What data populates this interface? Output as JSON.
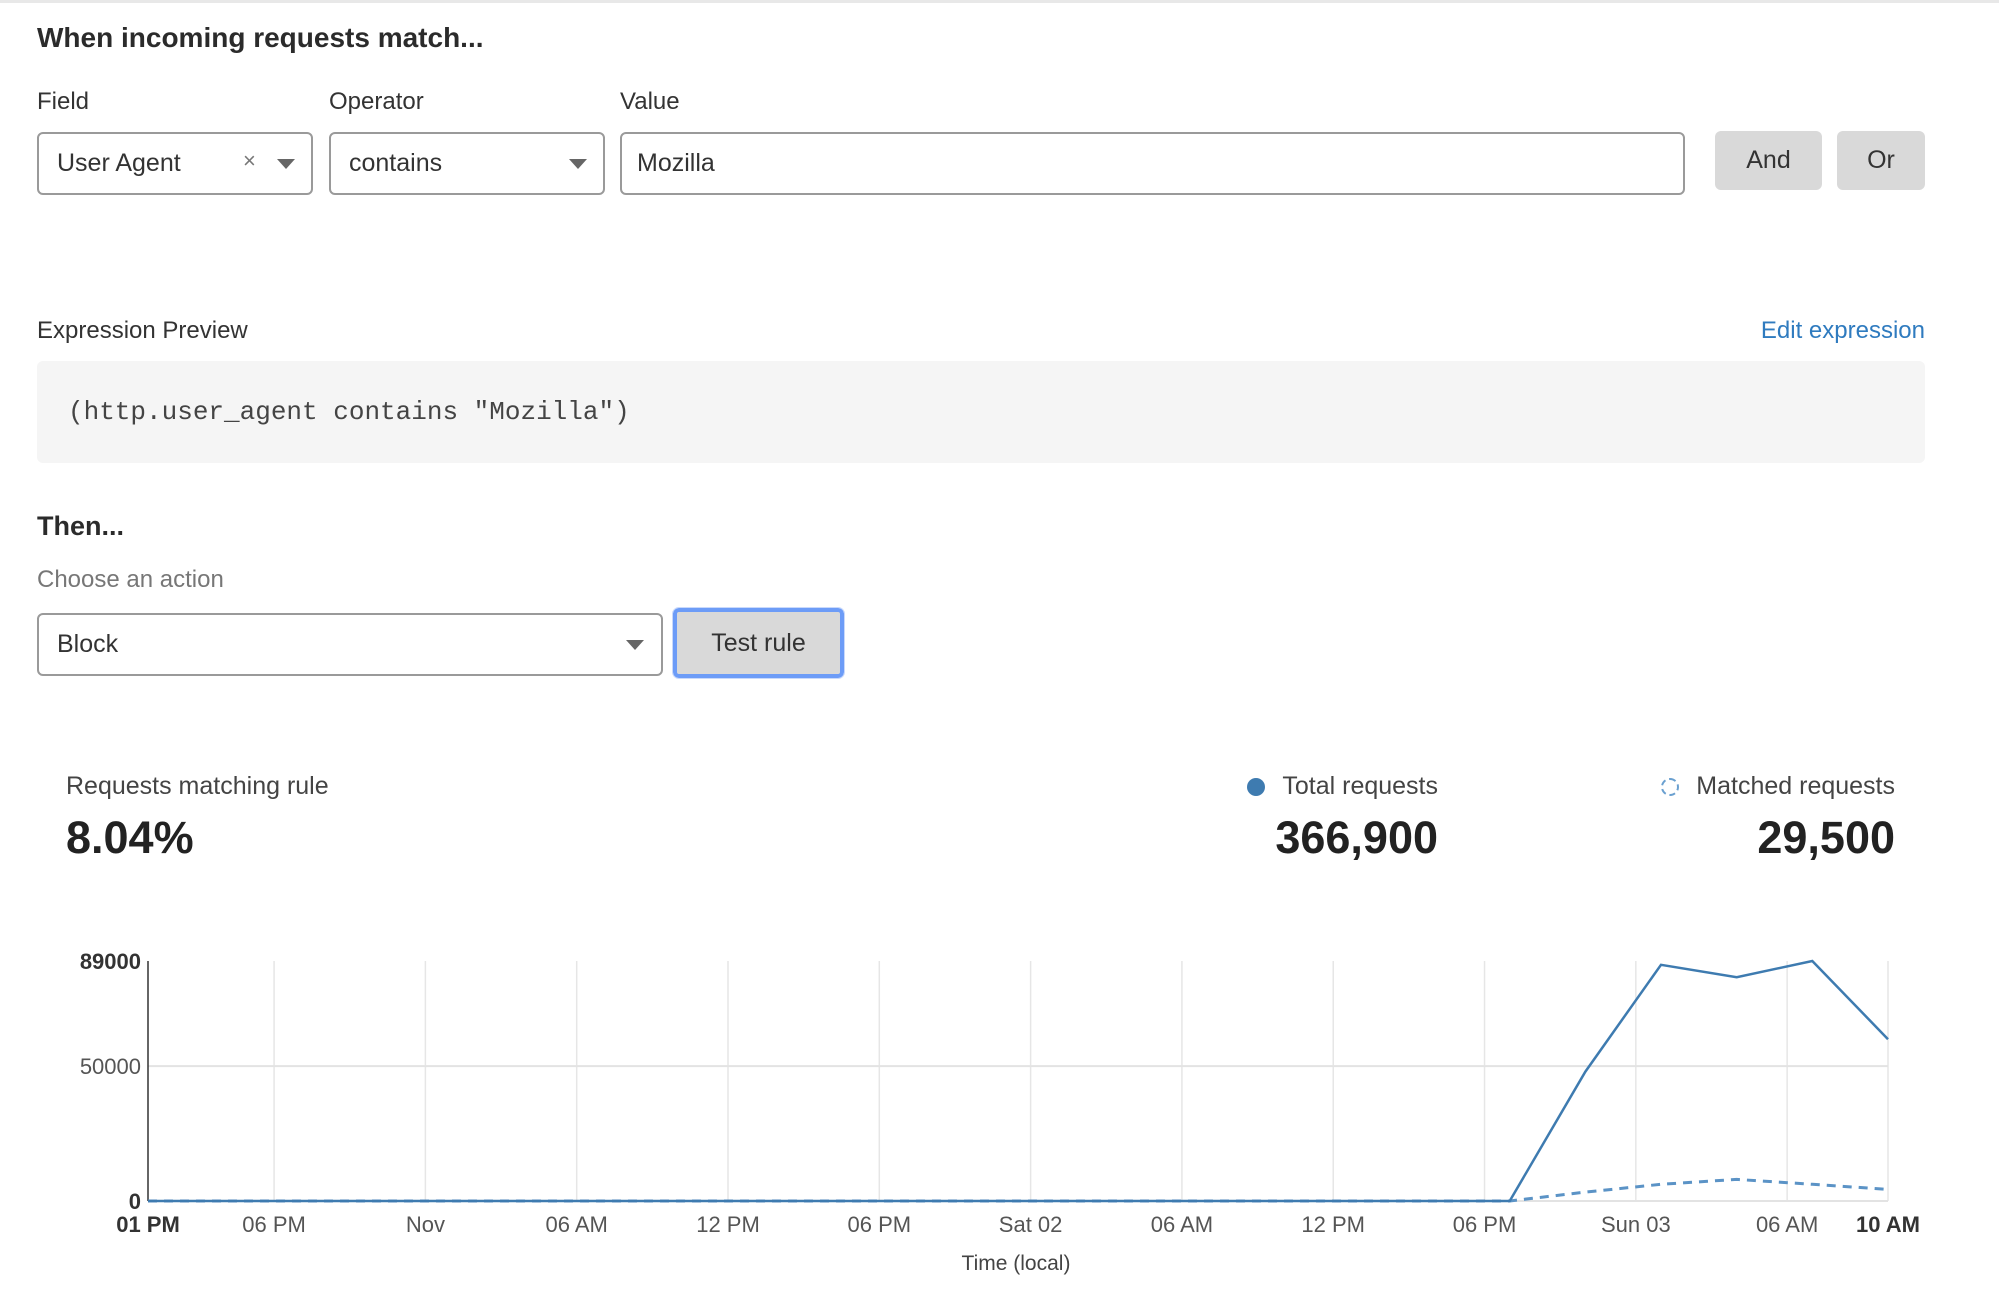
{
  "match_section": {
    "heading": "When incoming requests match...",
    "field": {
      "label": "Field",
      "value": "User Agent",
      "clear_icon": "×"
    },
    "operator": {
      "label": "Operator",
      "value": "contains"
    },
    "value": {
      "label": "Value",
      "value": "Mozilla"
    },
    "and_label": "And",
    "or_label": "Or"
  },
  "expression": {
    "label": "Expression Preview",
    "edit_link": "Edit expression",
    "code": "(http.user_agent contains \"Mozilla\")"
  },
  "then_section": {
    "heading": "Then...",
    "action_label": "Choose an action",
    "action_value": "Block",
    "test_button": "Test rule"
  },
  "stats": {
    "matching_label": "Requests matching rule",
    "matching_value": "8.04%",
    "total_label": "Total requests",
    "total_value": "366,900",
    "matched_label": "Matched requests",
    "matched_value": "29,500"
  },
  "colors": {
    "accent": "#3e7bb0",
    "link": "#2f7bbf",
    "focus": "#6d9cf7"
  },
  "chart_data": {
    "type": "line",
    "xlabel": "Time (local)",
    "ylabel": "",
    "ylim": [
      0,
      89000
    ],
    "yticks": [
      "89000",
      "50000",
      "0"
    ],
    "yticks_values": [
      89000,
      50000,
      0
    ],
    "xticks": [
      "01 PM",
      "06 PM",
      "Nov",
      "06 AM",
      "12 PM",
      "06 PM",
      "Sat 02",
      "06 AM",
      "12 PM",
      "06 PM",
      "Sun 03",
      "06 AM",
      "10 AM"
    ],
    "xticks_hours": [
      0,
      5,
      11,
      17,
      23,
      29,
      35,
      41,
      47,
      53,
      59,
      65,
      69
    ],
    "x_hours": [
      0,
      3,
      6,
      9,
      12,
      15,
      18,
      21,
      24,
      27,
      30,
      33,
      36,
      39,
      42,
      45,
      48,
      51,
      54,
      57,
      60,
      63,
      66,
      69
    ],
    "series": [
      {
        "name": "Total requests",
        "style": "solid",
        "values": [
          0,
          0,
          0,
          0,
          0,
          0,
          0,
          0,
          0,
          0,
          0,
          0,
          0,
          0,
          0,
          0,
          0,
          0,
          0,
          48000,
          87600,
          83000,
          89000,
          60000
        ]
      },
      {
        "name": "Matched requests",
        "style": "dashed",
        "values": [
          0,
          0,
          0,
          0,
          0,
          0,
          0,
          0,
          0,
          0,
          0,
          0,
          0,
          0,
          0,
          0,
          0,
          0,
          0,
          3300,
          6200,
          8000,
          6200,
          4300
        ]
      }
    ],
    "grid": true
  }
}
